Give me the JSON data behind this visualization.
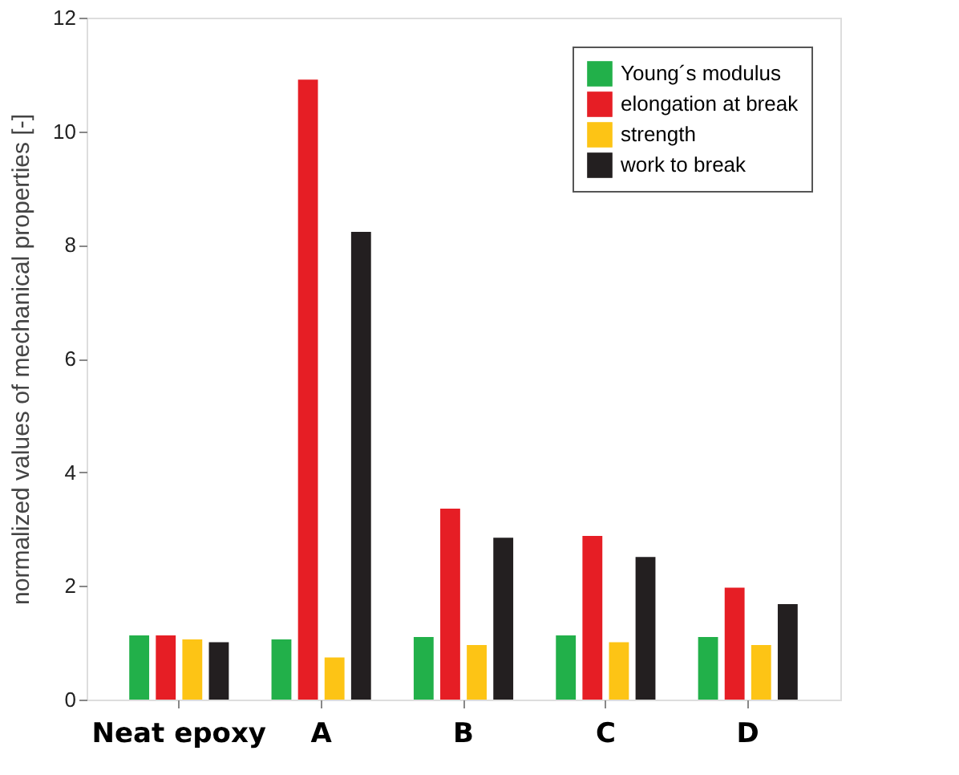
{
  "chart_data": {
    "type": "bar",
    "ylabel": "normalized values of mechanical properties [-]",
    "categories": [
      "Neat epoxy",
      "A",
      "B",
      "C",
      "D"
    ],
    "series": [
      {
        "name": "Young´s modulus",
        "color": "#22b04a",
        "values": [
          1.13,
          1.06,
          1.1,
          1.13,
          1.1
        ]
      },
      {
        "name": "elongation at break",
        "color": "#e61e25",
        "values": [
          1.13,
          10.91,
          3.36,
          2.88,
          1.97
        ]
      },
      {
        "name": "strength",
        "color": "#fdc415",
        "values": [
          1.06,
          0.74,
          0.96,
          1.01,
          0.96
        ]
      },
      {
        "name": "work to break",
        "color": "#231f20",
        "values": [
          1.01,
          8.23,
          2.85,
          2.51,
          1.68
        ]
      }
    ],
    "ylim": [
      0,
      12
    ],
    "yticks": [
      0,
      2,
      4,
      6,
      8,
      10,
      12
    ],
    "grid": false,
    "legend": "top right"
  }
}
